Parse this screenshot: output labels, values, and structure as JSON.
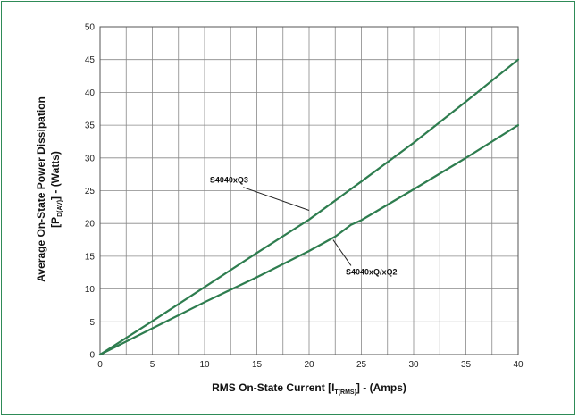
{
  "chart_data": {
    "type": "line",
    "title": "",
    "xlabel": {
      "main": "RMS On-State Current [I",
      "sub": "T(RMS)",
      "tail": "] - (Amps)"
    },
    "ylabel": {
      "line1": "Average On-State Power Dissipation",
      "line2_main": "[P",
      "line2_sub": "D(AV)",
      "line2_tail": "] - (Watts)"
    },
    "xlim": [
      0,
      40
    ],
    "ylim": [
      0,
      50
    ],
    "x_ticks": [
      0,
      5,
      10,
      15,
      20,
      25,
      30,
      35,
      40
    ],
    "y_ticks": [
      0,
      5,
      10,
      15,
      20,
      25,
      30,
      35,
      40,
      45,
      50
    ],
    "x_minor_step": 2.5,
    "y_minor_step": 5,
    "grid": true,
    "line_color": "#2e7d4f",
    "series": [
      {
        "name": "S4040xQ3",
        "points": [
          [
            0,
            0
          ],
          [
            5,
            5.1
          ],
          [
            10,
            10.3
          ],
          [
            15,
            15.5
          ],
          [
            20,
            20.6
          ],
          [
            25,
            26.4
          ],
          [
            30,
            32.3
          ],
          [
            35,
            38.6
          ],
          [
            40,
            45
          ]
        ]
      },
      {
        "name": "S4040xQ/xQ2",
        "points": [
          [
            0,
            0
          ],
          [
            5,
            4.0
          ],
          [
            10,
            8.0
          ],
          [
            15,
            11.8
          ],
          [
            20,
            15.8
          ],
          [
            22.5,
            18.0
          ],
          [
            24,
            19.8
          ],
          [
            25,
            20.5
          ],
          [
            30,
            25.2
          ],
          [
            35,
            30.0
          ],
          [
            40,
            35
          ]
        ]
      }
    ],
    "annotations": [
      {
        "text": "S4040xQ3",
        "x": 10.5,
        "y": 26.2,
        "arrow_to": [
          20,
          22
        ]
      },
      {
        "text": "S4040xQ/xQ2",
        "x": 23.5,
        "y": 12.2,
        "arrow_to": [
          22.3,
          17.5
        ]
      }
    ]
  }
}
